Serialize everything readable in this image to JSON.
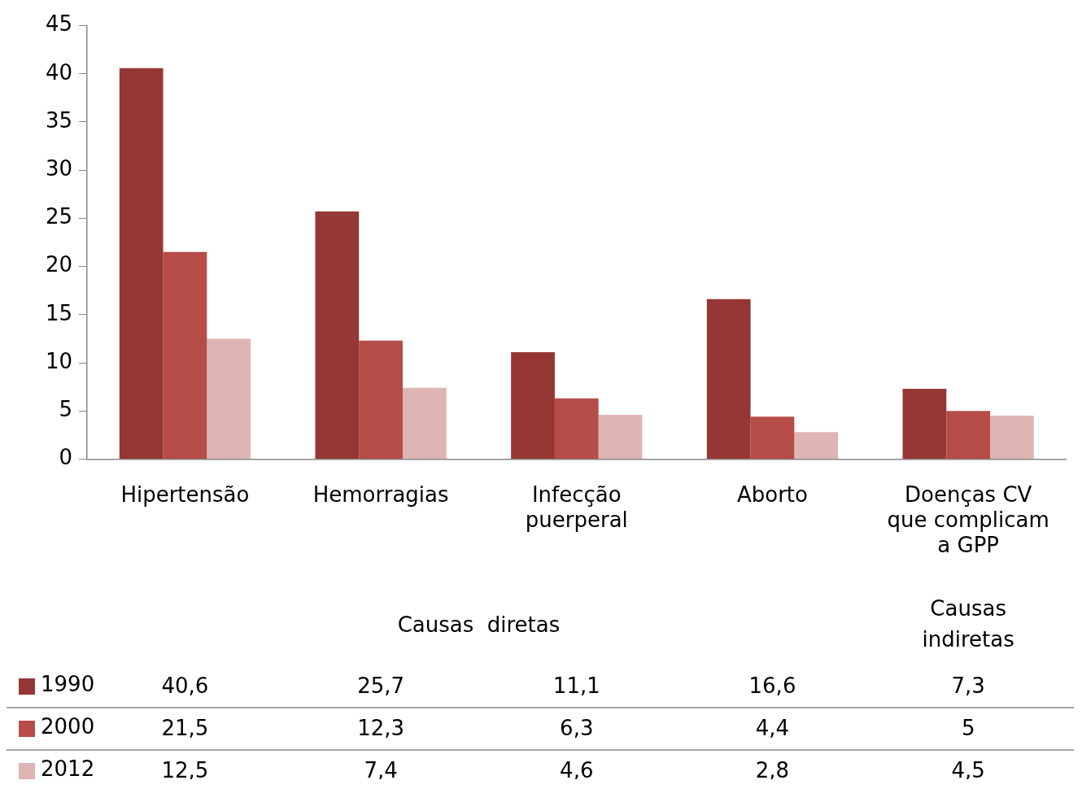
{
  "chart_data": {
    "type": "bar",
    "categories": [
      "Hipertensão",
      "Hemorragias",
      "Infecção puerperal",
      "Aborto",
      "Doenças CV que complicam a GPP"
    ],
    "series": [
      {
        "name": "1990",
        "color": "#953735",
        "values": [
          40.6,
          25.7,
          11.1,
          16.6,
          7.3
        ],
        "value_labels": [
          "40,6",
          "25,7",
          "11,1",
          "16,6",
          "7,3"
        ]
      },
      {
        "name": "2000",
        "color": "#b64c48",
        "values": [
          21.5,
          12.3,
          6.3,
          4.4,
          5
        ],
        "value_labels": [
          "21,5",
          "12,3",
          "6,3",
          "4,4",
          "5"
        ]
      },
      {
        "name": "2012",
        "color": "#dfb5b4",
        "values": [
          12.5,
          7.4,
          4.6,
          2.8,
          4.5
        ],
        "value_labels": [
          "12,5",
          "7,4",
          "4,6",
          "2,8",
          "4,5"
        ]
      }
    ],
    "annotations": [
      "Causas  diretas",
      "Causas indiretas"
    ],
    "ylim": [
      0,
      45
    ],
    "yticks": [
      0,
      5,
      10,
      15,
      20,
      25,
      30,
      35,
      40,
      45
    ],
    "grid": false,
    "legend": "bottom"
  }
}
